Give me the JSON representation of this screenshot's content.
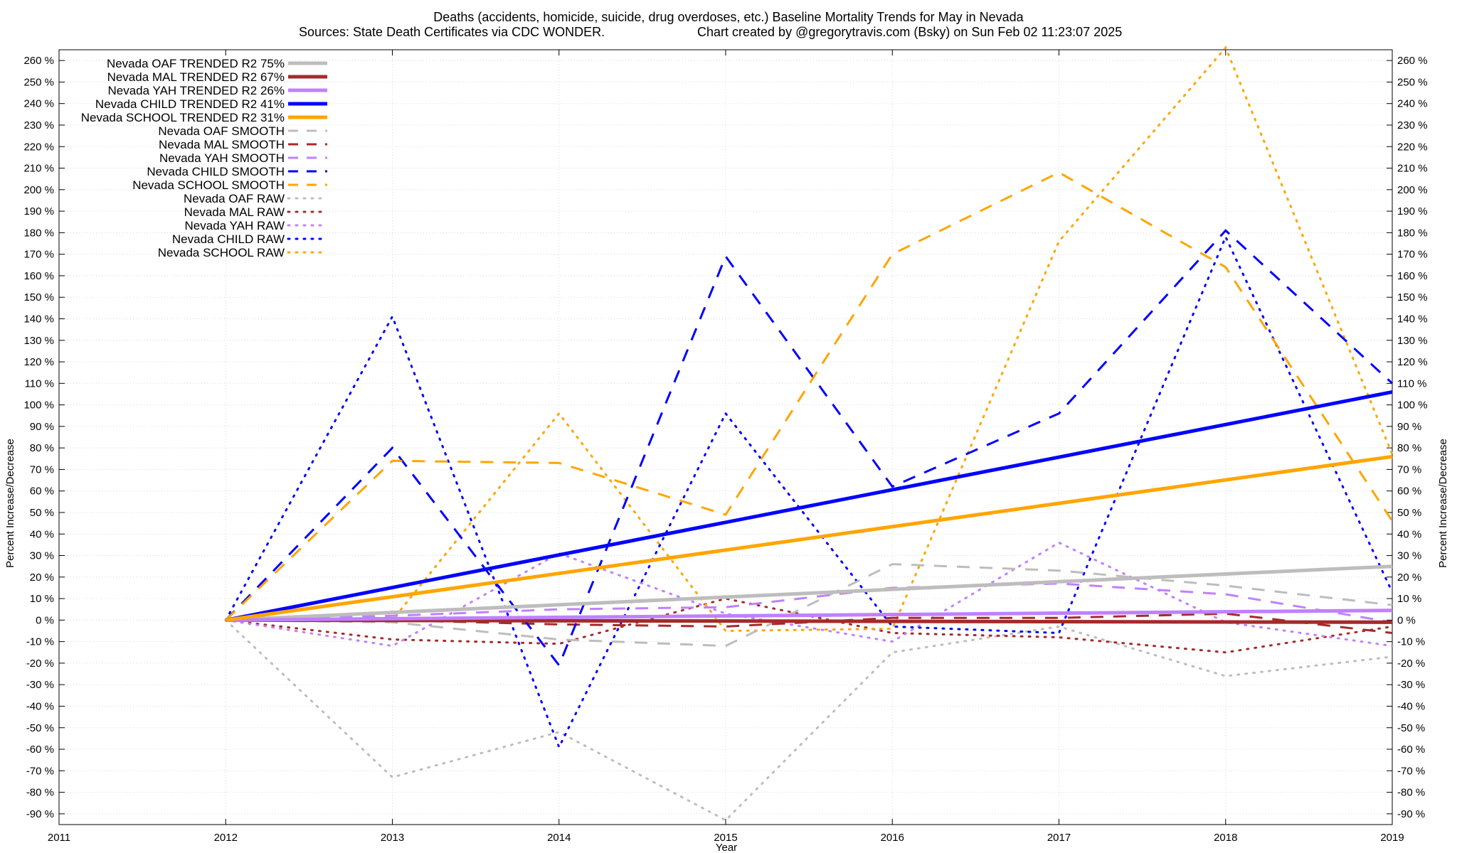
{
  "chart_data": {
    "type": "line",
    "title": "Deaths (accidents, homicide, suicide, drug overdoses, etc.)  Baseline Mortality Trends for May in Nevada",
    "subtitle_left": "Sources: State Death Certificates via CDC WONDER.",
    "subtitle_right": "Chart created by @gregorytravis.com (Bsky) on Sun Feb 02 11:23:07 2025",
    "xlabel": "Year",
    "ylabel": "Percent Increase/Decrease",
    "xlim": [
      2011,
      2019
    ],
    "ylim": [
      -95,
      265
    ],
    "x_ticks": [
      "2011",
      "2012",
      "2013",
      "2014",
      "2015",
      "2016",
      "2017",
      "2018",
      "2019"
    ],
    "y_ticks": [
      "-90 %",
      "-80 %",
      "-70 %",
      "-60 %",
      "-50 %",
      "-40 %",
      "-30 %",
      "-20 %",
      "-10 %",
      "0 %",
      "10 %",
      "20 %",
      "30 %",
      "40 %",
      "50 %",
      "60 %",
      "70 %",
      "80 %",
      "90 %",
      "100 %",
      "110 %",
      "120 %",
      "130 %",
      "140 %",
      "150 %",
      "160 %",
      "170 %",
      "180 %",
      "190 %",
      "200 %",
      "210 %",
      "220 %",
      "230 %",
      "240 %",
      "250 %",
      "260 %"
    ],
    "grid": true,
    "legend_position": "top-left",
    "series": [
      {
        "name": "Nevada OAF TRENDED R2  75%",
        "style": "solid",
        "color": "#bdbdbd",
        "x": [
          2012,
          2019
        ],
        "y": [
          0,
          25
        ]
      },
      {
        "name": "Nevada MAL TRENDED R2  67%",
        "style": "solid",
        "color": "#a52a2a",
        "x": [
          2012,
          2019
        ],
        "y": [
          0,
          -1
        ]
      },
      {
        "name": "Nevada YAH TRENDED R2  26%",
        "style": "solid",
        "color": "#c080ff",
        "x": [
          2012,
          2019
        ],
        "y": [
          0,
          4.5
        ]
      },
      {
        "name": "Nevada CHILD TRENDED R2  41%",
        "style": "solid",
        "color": "#0000ff",
        "x": [
          2012,
          2019
        ],
        "y": [
          0,
          106
        ]
      },
      {
        "name": "Nevada SCHOOL TRENDED R2  31%",
        "style": "solid",
        "color": "#ffa500",
        "x": [
          2012,
          2019
        ],
        "y": [
          0,
          76
        ]
      },
      {
        "name": "Nevada OAF SMOOTH",
        "style": "dash",
        "color": "#bdbdbd",
        "x": [
          2012,
          2013,
          2014,
          2015,
          2016,
          2017,
          2018,
          2019
        ],
        "y": [
          0,
          -1,
          -9,
          -12,
          26,
          23,
          16,
          7
        ]
      },
      {
        "name": "Nevada MAL SMOOTH",
        "style": "dash",
        "color": "#a52a2a",
        "x": [
          2012,
          2013,
          2014,
          2015,
          2016,
          2017,
          2018,
          2019
        ],
        "y": [
          0,
          0,
          -2,
          -3,
          1,
          1,
          3,
          -6
        ]
      },
      {
        "name": "Nevada YAH SMOOTH",
        "style": "dash",
        "color": "#c080ff",
        "x": [
          2012,
          2013,
          2014,
          2015,
          2016,
          2017,
          2018,
          2019
        ],
        "y": [
          0,
          2,
          5,
          6,
          15,
          17,
          12,
          -1
        ]
      },
      {
        "name": "Nevada CHILD SMOOTH",
        "style": "dash",
        "color": "#0000ff",
        "x": [
          2012,
          2013,
          2014,
          2015,
          2016,
          2017,
          2018,
          2019
        ],
        "y": [
          0,
          80,
          -21,
          169,
          62,
          96,
          181,
          110
        ]
      },
      {
        "name": "Nevada SCHOOL SMOOTH",
        "style": "dash",
        "color": "#ffa500",
        "x": [
          2012,
          2013,
          2014,
          2015,
          2016,
          2017,
          2018,
          2019
        ],
        "y": [
          0,
          74,
          73,
          49,
          170,
          208,
          164,
          46
        ]
      },
      {
        "name": "Nevada OAF RAW",
        "style": "dot",
        "color": "#bdbdbd",
        "x": [
          2012,
          2013,
          2014,
          2015,
          2016,
          2017,
          2018,
          2019
        ],
        "y": [
          0,
          -73,
          -52,
          -93,
          -15,
          -3,
          -26,
          -17
        ]
      },
      {
        "name": "Nevada MAL RAW",
        "style": "dot",
        "color": "#a52a2a",
        "x": [
          2012,
          2013,
          2014,
          2015,
          2016,
          2017,
          2018,
          2019
        ],
        "y": [
          0,
          -9,
          -11,
          10,
          -6,
          -8,
          -15,
          -3
        ]
      },
      {
        "name": "Nevada YAH RAW",
        "style": "dot",
        "color": "#c080ff",
        "x": [
          2012,
          2013,
          2014,
          2015,
          2016,
          2017,
          2018,
          2019
        ],
        "y": [
          0,
          -12,
          31,
          3,
          -10,
          36,
          -1,
          -12
        ]
      },
      {
        "name": "Nevada CHILD RAW",
        "style": "dot",
        "color": "#0000ff",
        "x": [
          2012,
          2013,
          2014,
          2015,
          2016,
          2017,
          2018,
          2019
        ],
        "y": [
          0,
          141,
          -59,
          96,
          -3,
          -6,
          178,
          13
        ]
      },
      {
        "name": "Nevada SCHOOL RAW",
        "style": "dot",
        "color": "#ffa500",
        "x": [
          2012,
          2013,
          2014,
          2015,
          2016,
          2017,
          2018,
          2019
        ],
        "y": [
          0,
          0,
          96,
          -5,
          -4,
          176,
          266,
          77
        ]
      }
    ]
  }
}
